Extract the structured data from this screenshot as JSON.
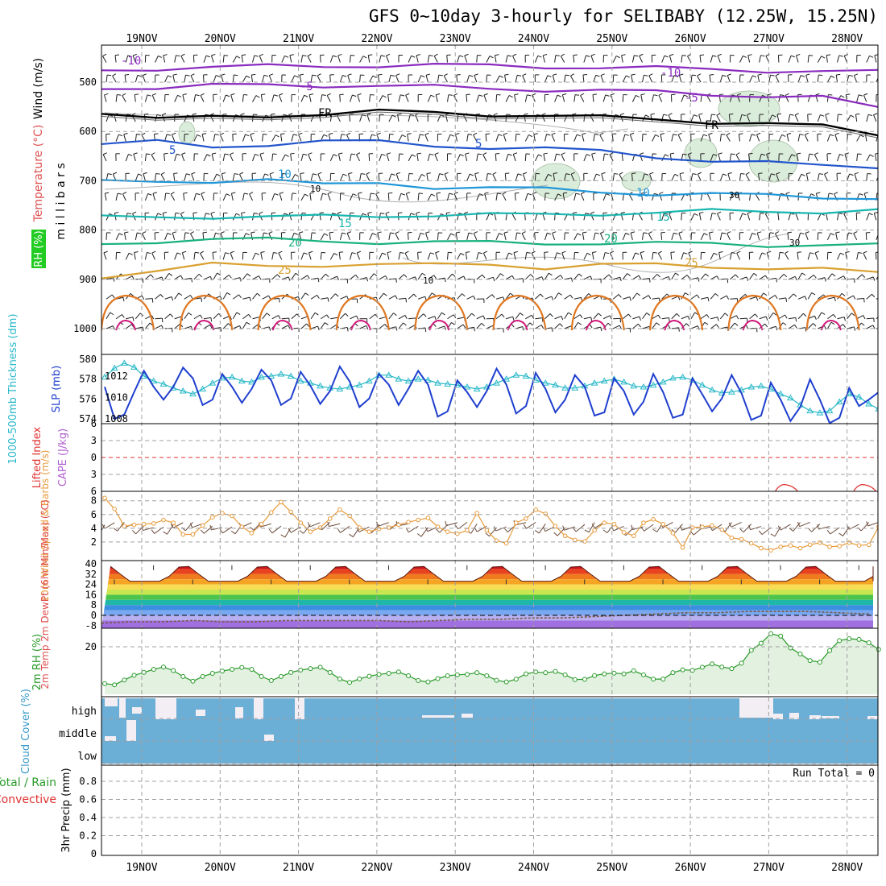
{
  "title": "GFS 0~10day 3-hourly for SELIBABY (12.25W, 15.25N)",
  "run_total_label": "Run Total = 0",
  "colors": {
    "grid": "#a0a0a0",
    "wind_fill": "#e7f1e7",
    "cloud": "#6baed6",
    "cloud_gap": "#f2eef4",
    "slp": "#1f3fcf",
    "thickness": "#28b8c8",
    "wind10": "#e89b3c",
    "rh2m": "#2a9a2a",
    "rh_fill": "#e3f1e1",
    "lifted_zero": "#e03030"
  },
  "chart_data": [
    {
      "type": "line",
      "panel": "upper-air",
      "title": "GFS 0~10day 3-hourly for SELIBABY (12.25W, 15.25N)",
      "ylabel_parts": [
        {
          "text": "RH (%)",
          "color": "#1a8a1a"
        },
        {
          "text": "Temperature (°C)",
          "color": "#e05050"
        },
        {
          "text": "Wind (m/s)",
          "color": "#000000"
        }
      ],
      "ylabel_units": "m i l l i b a r s",
      "x_dates": [
        "19NOV",
        "20NOV",
        "21NOV",
        "22NOV",
        "23NOV",
        "24NOV",
        "25NOV",
        "26NOV",
        "27NOV",
        "28NOV"
      ],
      "y_ticks": [
        500,
        600,
        700,
        800,
        900,
        1000
      ],
      "ylim": [
        1050,
        450
      ],
      "isotherms": [
        {
          "label": "-10",
          "color": "#8a2bbf",
          "levels": [
            476,
            472,
            470,
            468,
            467,
            466,
            466,
            467,
            468,
            470,
            472,
            474,
            476,
            478,
            480
          ]
        },
        {
          "label": "-5",
          "color": "#8a2bbf",
          "levels": [
            510,
            512,
            508,
            505,
            506,
            508,
            510,
            512,
            515,
            518,
            520,
            524,
            528,
            532,
            552
          ]
        },
        {
          "label": "FR",
          "color": "#000000",
          "levels": [
            560,
            575,
            572,
            568,
            564,
            560,
            562,
            565,
            568,
            572,
            575,
            580,
            585,
            590,
            605
          ]
        },
        {
          "label": "5",
          "color": "#2255cc",
          "levels": [
            625,
            622,
            632,
            625,
            620,
            622,
            628,
            632,
            636,
            640,
            650,
            660,
            665,
            668,
            670
          ]
        },
        {
          "label": "10",
          "color": "#1e96d8",
          "levels": [
            702,
            705,
            700,
            695,
            710,
            705,
            712,
            714,
            718,
            722,
            726,
            728,
            730,
            732,
            735
          ]
        },
        {
          "label": "15",
          "color": "#18b6b0",
          "levels": [
            775,
            772,
            773,
            775,
            772,
            770,
            770,
            770,
            768,
            766,
            765,
            762,
            762,
            762,
            760
          ]
        },
        {
          "label": "20",
          "color": "#18b080",
          "levels": [
            830,
            822,
            818,
            820,
            822,
            824,
            825,
            826,
            826,
            826,
            828,
            828,
            830,
            830,
            832
          ]
        },
        {
          "label": "25",
          "color": "#d9a030",
          "levels": [
            895,
            880,
            870,
            875,
            870,
            868,
            872,
            870,
            875,
            870,
            872,
            874,
            876,
            880,
            888
          ]
        }
      ],
      "rh_contour_labels": [
        "10",
        "30",
        "30",
        "10"
      ]
    },
    {
      "type": "line",
      "panel": "slp-thickness",
      "ylabel_left": "1000-500mb Thickness (dm)",
      "ylabel_right": "SLP (mb)",
      "left_ticks": [
        574,
        576,
        578,
        580
      ],
      "right_ticks": [
        1008,
        1010,
        1012
      ],
      "x_days": [
        0,
        0.125,
        0.25,
        0.375,
        0.5,
        0.625,
        0.75,
        0.875,
        1,
        1.125,
        1.25,
        1.375,
        1.5,
        1.625,
        1.75,
        1.875,
        2,
        2.125,
        2.25,
        2.375,
        2.5,
        2.625,
        2.75,
        2.875,
        3,
        3.125,
        3.25,
        3.375,
        3.5,
        3.625,
        3.75,
        3.875,
        4,
        4.125,
        4.25,
        4.375,
        4.5,
        4.625,
        4.75,
        4.875,
        5,
        5.125,
        5.25,
        5.375,
        5.5,
        5.625,
        5.75,
        5.875,
        6,
        6.125,
        6.25,
        6.375,
        6.5,
        6.625,
        6.75,
        6.875,
        7,
        7.125,
        7.25,
        7.375,
        7.5,
        7.625,
        7.75,
        7.875,
        8,
        8.125,
        8.25,
        8.375,
        8.5,
        8.625,
        8.75,
        8.875,
        9,
        9.125,
        9.25,
        9.375,
        9.5,
        9.625,
        9.75,
        9.875
      ],
      "series": [
        {
          "name": "SLP (mb)",
          "axis": "right",
          "values": [
            1011,
            1008,
            1008.4,
            1010.5,
            1012.5,
            1011,
            1009.8,
            1011,
            1012.8,
            1011.8,
            1009.3,
            1009.8,
            1012.2,
            1011,
            1009.5,
            1010.8,
            1012.6,
            1011.6,
            1009.3,
            1009.9,
            1012.4,
            1011.1,
            1009.4,
            1010.6,
            1012.9,
            1011.5,
            1009.1,
            1009.9,
            1012.2,
            1011.2,
            1009.3,
            1010.8,
            1012.5,
            1011.2,
            1008.2,
            1008.7,
            1011.6,
            1010.5,
            1009.1,
            1010.6,
            1012.7,
            1011.2,
            1008.5,
            1009.2,
            1012.3,
            1010.8,
            1008.6,
            1009.8,
            1012.1,
            1011,
            1008.3,
            1008.6,
            1011.8,
            1010.6,
            1008.4,
            1009.6,
            1012.2,
            1010.5,
            1008.1,
            1008.4,
            1011.8,
            1010.3,
            1008.7,
            1009.9,
            1012.1,
            1010.4,
            1007.9,
            1008.3,
            1011.4,
            1009.8,
            1007.8,
            1009.1,
            1011.7,
            1009.8,
            1007.6,
            1008.1,
            1010.9,
            1009.2,
            1009.8,
            1010.5
          ]
        },
        {
          "name": "1000-500mb Thickness (dm)",
          "axis": "left",
          "values": [
            578.2,
            579.1,
            579.6,
            579.2,
            578.3,
            577.8,
            577.5,
            577.1,
            576.8,
            576.5,
            577,
            577.6,
            578.1,
            578.2,
            577.8,
            577.7,
            578.2,
            578.3,
            578.5,
            578.3,
            577.8,
            577.6,
            577.3,
            577.1,
            577,
            577.2,
            577.4,
            577.8,
            578.4,
            578.4,
            578,
            577.8,
            578,
            577.9,
            577.6,
            577.5,
            577.4,
            577.2,
            577,
            577.2,
            577.6,
            578,
            578.4,
            578.3,
            577.9,
            577.6,
            577.4,
            577.1,
            577.1,
            577.3,
            577.6,
            577.8,
            578,
            577.7,
            577.3,
            577.2,
            577.4,
            577.7,
            578.1,
            578.2,
            577.9,
            577.4,
            576.9,
            576.6,
            576.7,
            576.9,
            577.2,
            577.3,
            577,
            576.5,
            576.1,
            575.4,
            574.8,
            574.6,
            574.8,
            575.7,
            576.5,
            576.2,
            575.5,
            575
          ]
        }
      ]
    },
    {
      "type": "line",
      "panel": "lifted-index-cape",
      "ylabel_left": "Lifted Index",
      "ylabel_right": "CAPE (J/kg)",
      "left_ticks": [
        -6,
        -3,
        0,
        3,
        6
      ],
      "tick_labels": [
        "6",
        "3",
        "0",
        "3",
        "6"
      ],
      "cape_markers": [
        {
          "day": 8.7,
          "label": "cape"
        },
        {
          "day": 9.7,
          "label": "cape"
        }
      ]
    },
    {
      "type": "line",
      "panel": "wind10m",
      "ylabel": "10m Wind Speed & Barbs (m/s)",
      "y_ticks": [
        2,
        4,
        6,
        8
      ],
      "ylim": [
        0,
        9
      ],
      "series": [
        {
          "name": "10m Wind Speed",
          "values": [
            8.4,
            6.8,
            4.3,
            4.5,
            4.6,
            4.7,
            5.2,
            4.8,
            3.1,
            3.1,
            4.4,
            5.6,
            6.2,
            5.8,
            4.2,
            3.3,
            4.6,
            6.3,
            7.8,
            6.4,
            4.8,
            3.5,
            4.1,
            5.4,
            6.7,
            5.8,
            4.1,
            3.5,
            3.9,
            4.1,
            4.5,
            4.9,
            5.2,
            5.5,
            4.2,
            3.5,
            3.2,
            3.7,
            6.2,
            3.7,
            2.2,
            1.8,
            4.8,
            5.4,
            6.7,
            6.1,
            4.3,
            2.9,
            2.3,
            2.1,
            3.7,
            4.8,
            4.6,
            3.4,
            2.9,
            4.8,
            5.3,
            4.6,
            3.3,
            1.2,
            4.1,
            4.2,
            4.4,
            3.8,
            2.6,
            2.4,
            1.8,
            1.1,
            0.8,
            1.3,
            1.5,
            1.1,
            1.6,
            1.9,
            1.3,
            1.4,
            1.9,
            1.5,
            1.6,
            4.2
          ]
        }
      ]
    },
    {
      "type": "area",
      "panel": "temp2m",
      "ylabel": "2m Temp 2m DewPt (6hr Min/Max) (°C)",
      "y_ticks": [
        -8,
        0,
        8,
        16,
        24,
        32,
        40
      ],
      "tick_labels": [
        "-8",
        "0",
        "8",
        "16",
        "24",
        "32",
        "40"
      ],
      "ylim": [
        -10,
        40
      ],
      "series": [
        {
          "name": "2m Temp",
          "day_min": 24,
          "day_max": 37
        },
        {
          "name": "2m DewPt",
          "values": [
            -6,
            -5,
            -5,
            -4,
            -5,
            -5,
            -4,
            -4,
            -4,
            -4,
            -5,
            -4,
            -3,
            -3,
            -2,
            -2,
            -1,
            0,
            1,
            2,
            2,
            3,
            3,
            3,
            2,
            1
          ]
        }
      ]
    },
    {
      "type": "area",
      "panel": "rh2m",
      "ylabel": "2m RH (%)",
      "y_ticks": [
        20
      ],
      "ylim": [
        0,
        30
      ],
      "series": [
        {
          "name": "2m RH",
          "values": [
            4.5,
            4,
            6,
            8,
            9.2,
            10.5,
            11.5,
            10,
            7.5,
            5.5,
            7.5,
            8.8,
            9.8,
            10.5,
            11.3,
            10.5,
            7.5,
            5.8,
            7.5,
            9.2,
            10.2,
            10.8,
            11.4,
            9.2,
            6.5,
            5,
            6.5,
            7.6,
            8.4,
            8.8,
            9.4,
            7.8,
            5.8,
            5.2,
            6.6,
            7.8,
            8.2,
            8.4,
            9.1,
            7.8,
            5.9,
            5.2,
            6.4,
            8.6,
            9.4,
            9.1,
            9.6,
            8.2,
            6.2,
            6.3,
            7.9,
            8.6,
            8.9,
            8.6,
            9.9,
            8.2,
            6.4,
            6.4,
            9.1,
            10.3,
            10.1,
            11.4,
            12.8,
            11.5,
            10.8,
            13.1,
            18.5,
            21.5,
            25.5,
            24.5,
            19.5,
            17,
            14.2,
            13.5,
            18.4,
            22.6,
            23.4,
            23.1,
            21.7,
            18.9
          ]
        }
      ]
    },
    {
      "type": "area",
      "panel": "cloud-cover",
      "ylabel": "Cloud Cover (%)",
      "row_labels": [
        "high",
        "middle",
        "low"
      ]
    },
    {
      "type": "bar",
      "panel": "precip",
      "ylabel": "3hr Precip (mm)",
      "legend_labels": [
        {
          "text": "Total / Rain",
          "color": "#2a9a2a"
        },
        {
          "text": "Convective",
          "color": "#e03030"
        }
      ],
      "y_ticks": [
        0,
        0.2,
        0.4,
        0.6,
        0.8
      ],
      "tick_labels": [
        "0",
        "0.2",
        "0.4",
        "0.6",
        "0.8"
      ],
      "ylim": [
        0,
        1
      ]
    }
  ]
}
